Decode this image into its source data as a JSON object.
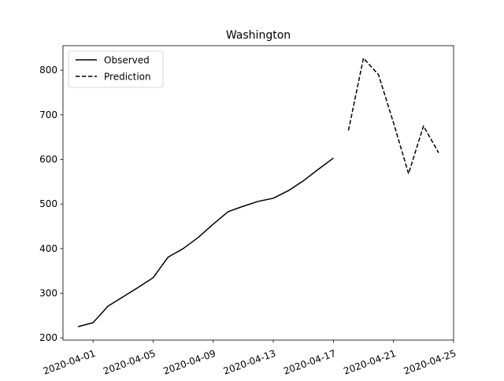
{
  "chart_data": {
    "type": "line",
    "title": "Washington",
    "xlabel": "",
    "ylabel": "",
    "x_range": [
      "2020-03-30",
      "2020-04-25"
    ],
    "ylim": [
      195,
      855
    ],
    "x_ticks": [
      "2020-04-01",
      "2020-04-05",
      "2020-04-09",
      "2020-04-13",
      "2020-04-17",
      "2020-04-21",
      "2020-04-25"
    ],
    "y_ticks": [
      200,
      300,
      400,
      500,
      600,
      700,
      800
    ],
    "grid": false,
    "legend": {
      "position": "top-left"
    },
    "series": [
      {
        "name": "Observed",
        "style": "solid",
        "color": "#000000",
        "points": [
          {
            "x": "2020-03-31",
            "y": 225
          },
          {
            "x": "2020-04-01",
            "y": 234
          },
          {
            "x": "2020-04-02",
            "y": 271
          },
          {
            "x": "2020-04-03",
            "y": 292
          },
          {
            "x": "2020-04-04",
            "y": 313
          },
          {
            "x": "2020-04-05",
            "y": 335
          },
          {
            "x": "2020-04-06",
            "y": 381
          },
          {
            "x": "2020-04-07",
            "y": 400
          },
          {
            "x": "2020-04-08",
            "y": 425
          },
          {
            "x": "2020-04-09",
            "y": 455
          },
          {
            "x": "2020-04-10",
            "y": 483
          },
          {
            "x": "2020-04-11",
            "y": 495
          },
          {
            "x": "2020-04-12",
            "y": 506
          },
          {
            "x": "2020-04-13",
            "y": 513
          },
          {
            "x": "2020-04-14",
            "y": 530
          },
          {
            "x": "2020-04-15",
            "y": 552
          },
          {
            "x": "2020-04-16",
            "y": 578
          },
          {
            "x": "2020-04-17",
            "y": 603
          }
        ]
      },
      {
        "name": "Prediction",
        "style": "dashed",
        "color": "#000000",
        "points": [
          {
            "x": "2020-04-18",
            "y": 665
          },
          {
            "x": "2020-04-19",
            "y": 827
          },
          {
            "x": "2020-04-20",
            "y": 790
          },
          {
            "x": "2020-04-21",
            "y": 682
          },
          {
            "x": "2020-04-22",
            "y": 568
          },
          {
            "x": "2020-04-23",
            "y": 675
          },
          {
            "x": "2020-04-24",
            "y": 615
          }
        ]
      }
    ]
  }
}
